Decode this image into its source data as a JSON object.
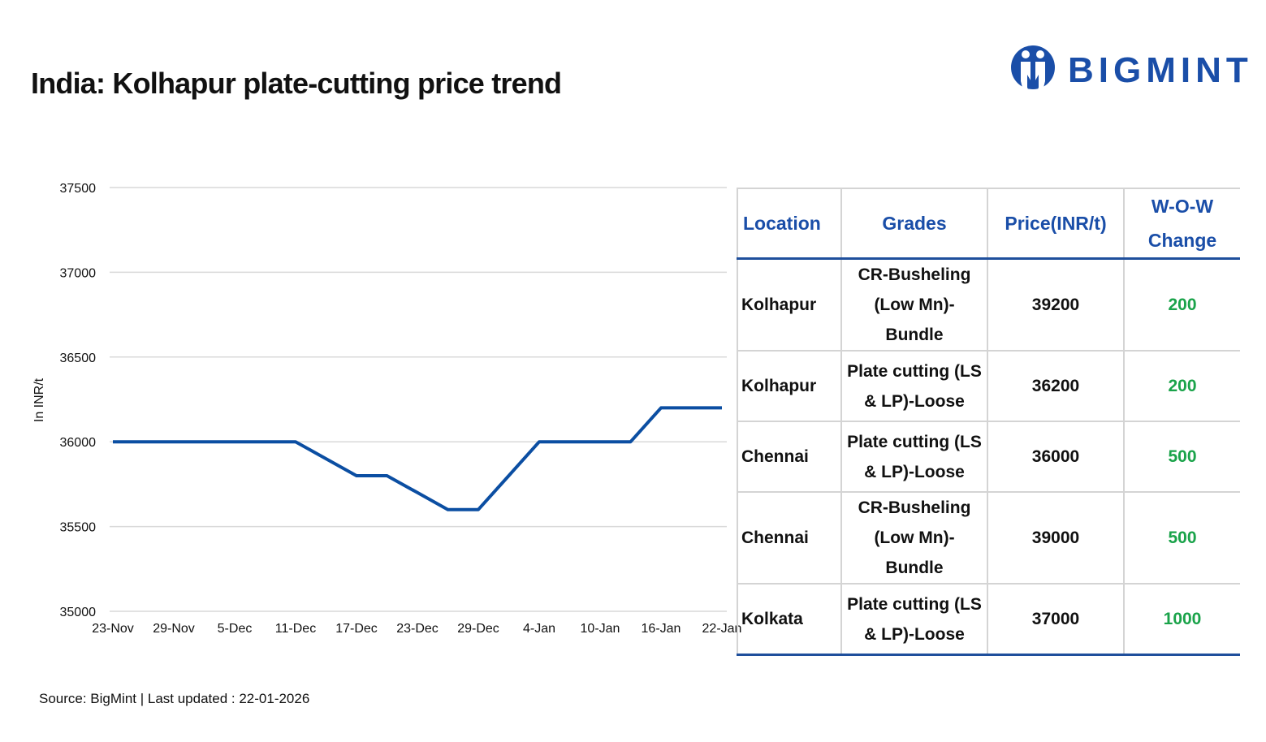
{
  "title": "India: Kolhapur plate-cutting price trend",
  "logo": {
    "text": "BIGMINT",
    "color": "#1a4ea8"
  },
  "chart_data": {
    "type": "line",
    "ylabel": "In INR/t",
    "ylim": [
      35000,
      37500
    ],
    "yticks": [
      35000,
      35500,
      36000,
      36500,
      37000,
      37500
    ],
    "xticks": [
      "23-Nov",
      "29-Nov",
      "5-Dec",
      "11-Dec",
      "17-Dec",
      "23-Dec",
      "29-Dec",
      "4-Jan",
      "10-Jan",
      "16-Jan",
      "22-Jan"
    ],
    "grid": true,
    "line_color": "#0b4ea2",
    "x": [
      "23-Nov",
      "26-Nov",
      "29-Nov",
      "2-Dec",
      "5-Dec",
      "8-Dec",
      "11-Dec",
      "14-Dec",
      "17-Dec",
      "20-Dec",
      "23-Dec",
      "26-Dec",
      "29-Dec",
      "1-Jan",
      "4-Jan",
      "7-Jan",
      "10-Jan",
      "13-Jan",
      "16-Jan",
      "19-Jan",
      "22-Jan"
    ],
    "values": [
      36000,
      36000,
      36000,
      36000,
      36000,
      36000,
      36000,
      35900,
      35800,
      35800,
      35700,
      35600,
      35600,
      35800,
      36000,
      36000,
      36000,
      36000,
      36200,
      36200,
      36200
    ]
  },
  "table": {
    "headers": [
      "Location",
      "Grades",
      "Price(INR/t)",
      "W-O-W Change"
    ],
    "rows": [
      {
        "location": "Kolhapur",
        "grade": "CR-Busheling (Low Mn)-Bundle",
        "price": "39200",
        "change": "200"
      },
      {
        "location": "Kolhapur",
        "grade": "Plate cutting (LS & LP)-Loose",
        "price": "36200",
        "change": "200"
      },
      {
        "location": "Chennai",
        "grade": "Plate cutting (LS & LP)-Loose",
        "price": "36000",
        "change": "500"
      },
      {
        "location": "Chennai",
        "grade": "CR-Busheling (Low Mn)-Bundle",
        "price": "39000",
        "change": "500"
      },
      {
        "location": "Kolkata",
        "grade": "Plate cutting (LS & LP)-Loose",
        "price": "37000",
        "change": "1000"
      }
    ],
    "header_color": "#1a4ea8",
    "change_color": "#1aa34a"
  },
  "source": "Source: BigMint | Last updated : 22-01-2026"
}
